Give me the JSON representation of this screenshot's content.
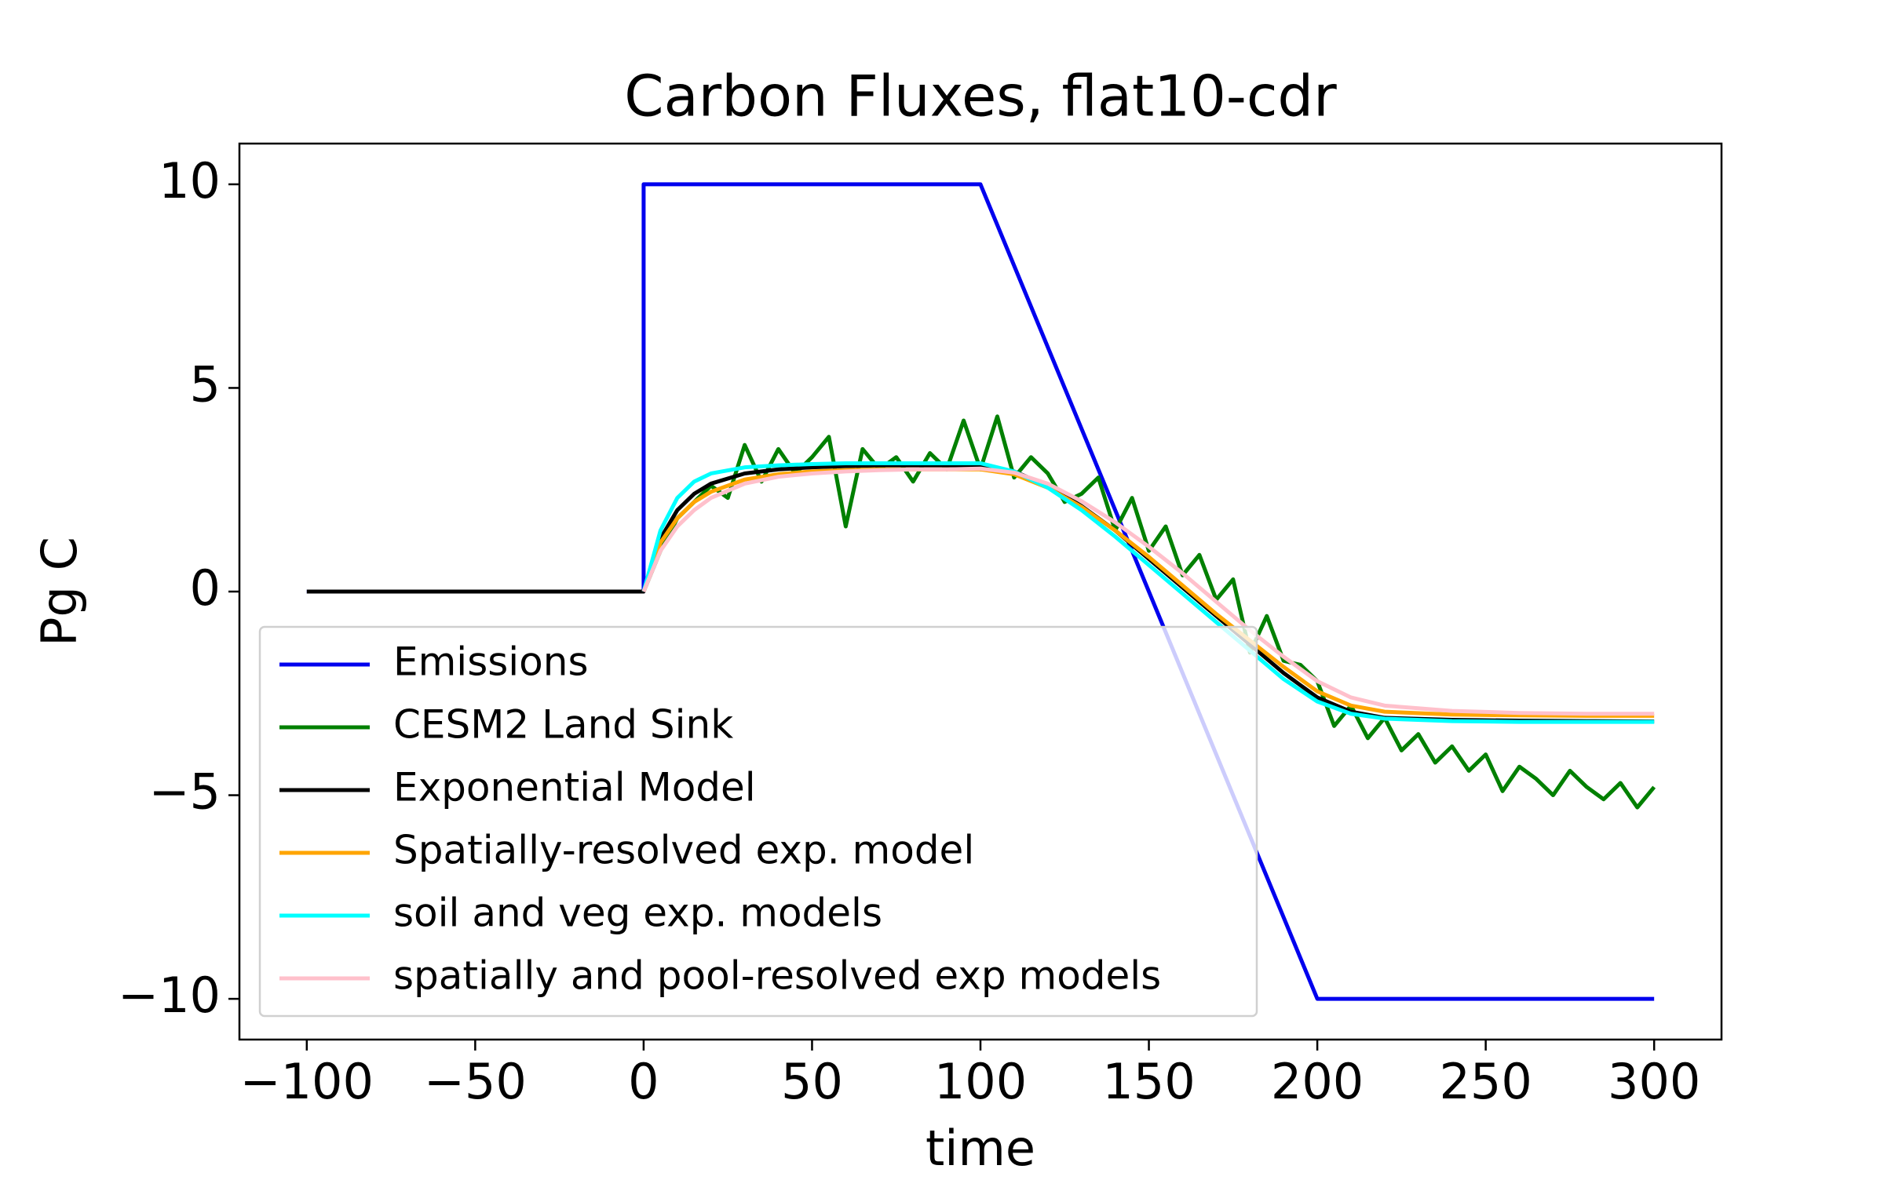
{
  "chart_data": {
    "type": "line",
    "title": "Carbon Fluxes, flat10-cdr",
    "x_label": "time",
    "y_label": "Pg C",
    "xlim": [
      -120,
      320
    ],
    "ylim": [
      -11,
      11
    ],
    "xticks": [
      {
        "value": -100,
        "label": "−100"
      },
      {
        "value": -50,
        "label": "−50"
      },
      0,
      50,
      100,
      150,
      200,
      250,
      300
    ],
    "yticks": [
      {
        "value": -10,
        "label": "−10"
      },
      {
        "value": -5,
        "label": "−5"
      },
      0,
      5,
      10
    ],
    "grid": false,
    "legend": "lower left",
    "series": [
      {
        "name": "Emissions",
        "color": "#0000ee",
        "x": [
          -100,
          0,
          0,
          100,
          200,
          300
        ],
        "values": [
          0,
          0,
          10,
          10,
          -10,
          -10
        ]
      },
      {
        "name": "CESM2 Land Sink",
        "color": "#008000",
        "x": [
          0,
          5,
          10,
          15,
          20,
          25,
          30,
          35,
          40,
          45,
          50,
          55,
          60,
          65,
          70,
          75,
          80,
          85,
          90,
          95,
          100,
          105,
          110,
          115,
          120,
          125,
          130,
          135,
          140,
          145,
          150,
          155,
          160,
          165,
          170,
          175,
          180,
          185,
          190,
          195,
          200,
          205,
          210,
          215,
          220,
          225,
          230,
          235,
          240,
          245,
          250,
          255,
          260,
          265,
          270,
          275,
          280,
          285,
          290,
          295,
          300
        ],
        "values": [
          0,
          1.0,
          1.8,
          2.2,
          2.6,
          2.3,
          3.6,
          2.7,
          3.5,
          2.9,
          3.3,
          3.8,
          1.6,
          3.5,
          3.0,
          3.3,
          2.7,
          3.4,
          3.0,
          4.2,
          3.0,
          4.3,
          2.8,
          3.3,
          2.9,
          2.2,
          2.4,
          2.8,
          1.5,
          2.3,
          1.0,
          1.6,
          0.4,
          0.9,
          -0.2,
          0.3,
          -1.5,
          -0.6,
          -1.7,
          -1.8,
          -2.2,
          -3.3,
          -2.8,
          -3.6,
          -3.1,
          -3.9,
          -3.5,
          -4.2,
          -3.8,
          -4.4,
          -4.0,
          -4.9,
          -4.3,
          -4.6,
          -5.0,
          -4.4,
          -4.8,
          -5.1,
          -4.7,
          -5.3,
          -4.8
        ]
      },
      {
        "name": "Exponential Model",
        "color": "#000000",
        "x": [
          -100,
          0,
          5,
          10,
          15,
          20,
          30,
          40,
          50,
          60,
          70,
          80,
          90,
          100,
          110,
          120,
          130,
          140,
          150,
          160,
          170,
          180,
          190,
          200,
          210,
          220,
          240,
          260,
          280,
          300
        ],
        "values": [
          0,
          0,
          1.3,
          2.0,
          2.4,
          2.65,
          2.9,
          3.0,
          3.05,
          3.08,
          3.1,
          3.1,
          3.1,
          3.1,
          2.95,
          2.6,
          2.1,
          1.5,
          0.8,
          0.1,
          -0.6,
          -1.3,
          -2.0,
          -2.6,
          -2.95,
          -3.1,
          -3.15,
          -3.17,
          -3.18,
          -3.19
        ]
      },
      {
        "name": "Spatially-resolved exp. model",
        "color": "#ffa500",
        "x": [
          0,
          5,
          10,
          15,
          20,
          30,
          40,
          50,
          60,
          70,
          80,
          90,
          100,
          110,
          120,
          130,
          140,
          150,
          160,
          170,
          180,
          190,
          200,
          210,
          220,
          240,
          260,
          280,
          300
        ],
        "values": [
          0,
          1.2,
          1.8,
          2.2,
          2.45,
          2.75,
          2.88,
          2.95,
          2.98,
          3.0,
          3.0,
          3.0,
          3.0,
          2.88,
          2.55,
          2.08,
          1.5,
          0.85,
          0.15,
          -0.55,
          -1.2,
          -1.85,
          -2.45,
          -2.8,
          -2.95,
          -3.02,
          -3.04,
          -3.05,
          -3.05
        ]
      },
      {
        "name": "soil and veg exp. models",
        "color": "#00ffff",
        "x": [
          0,
          5,
          10,
          15,
          20,
          30,
          40,
          50,
          60,
          70,
          80,
          90,
          100,
          110,
          120,
          130,
          140,
          150,
          160,
          170,
          180,
          190,
          200,
          210,
          220,
          240,
          260,
          280,
          300
        ],
        "values": [
          0,
          1.5,
          2.3,
          2.7,
          2.9,
          3.05,
          3.1,
          3.13,
          3.15,
          3.15,
          3.15,
          3.15,
          3.15,
          2.95,
          2.55,
          2.0,
          1.35,
          0.65,
          -0.05,
          -0.75,
          -1.45,
          -2.15,
          -2.7,
          -3.0,
          -3.12,
          -3.18,
          -3.2,
          -3.2,
          -3.2
        ]
      },
      {
        "name": "spatially and pool-resolved exp models",
        "color": "#ffc0cb",
        "x": [
          0,
          5,
          10,
          15,
          20,
          30,
          40,
          50,
          60,
          70,
          80,
          90,
          100,
          110,
          120,
          130,
          140,
          150,
          160,
          170,
          180,
          190,
          200,
          210,
          220,
          240,
          260,
          280,
          300
        ],
        "values": [
          0,
          1.0,
          1.6,
          2.0,
          2.3,
          2.65,
          2.82,
          2.9,
          2.95,
          2.98,
          3.0,
          3.0,
          3.02,
          2.92,
          2.65,
          2.22,
          1.7,
          1.1,
          0.45,
          -0.25,
          -0.95,
          -1.6,
          -2.2,
          -2.6,
          -2.8,
          -2.93,
          -2.98,
          -3.0,
          -3.0
        ]
      }
    ]
  }
}
